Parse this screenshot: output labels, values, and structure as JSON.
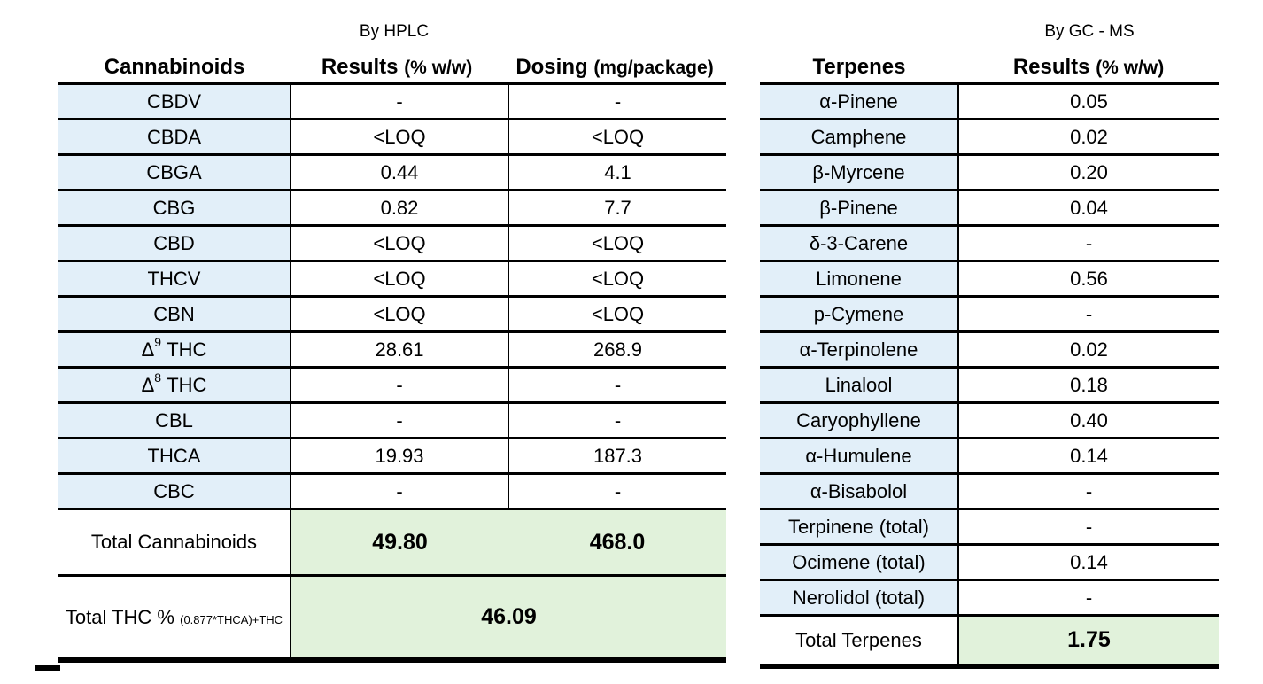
{
  "left": {
    "caption": "By HPLC",
    "col_headers": {
      "name": "Cannabinoids",
      "results": "Results",
      "results_unit": "(% w/w)",
      "dosing": "Dosing",
      "dosing_unit": "(mg/package)"
    },
    "rows": [
      {
        "name": "CBDV",
        "sup": "",
        "result": "-",
        "dose": "-"
      },
      {
        "name": "CBDA",
        "sup": "",
        "result": "<LOQ",
        "dose": "<LOQ"
      },
      {
        "name": "CBGA",
        "sup": "",
        "result": "0.44",
        "dose": "4.1"
      },
      {
        "name": "CBG",
        "sup": "",
        "result": "0.82",
        "dose": "7.7"
      },
      {
        "name": "CBD",
        "sup": "",
        "result": "<LOQ",
        "dose": "<LOQ"
      },
      {
        "name": "THCV",
        "sup": "",
        "result": "<LOQ",
        "dose": "<LOQ"
      },
      {
        "name": "CBN",
        "sup": "",
        "result": "<LOQ",
        "dose": "<LOQ"
      },
      {
        "name": "Δ",
        "sup": "9",
        "suffix": " THC",
        "result": "28.61",
        "dose": "268.9"
      },
      {
        "name": "Δ",
        "sup": "8",
        "suffix": " THC",
        "result": "-",
        "dose": "-"
      },
      {
        "name": "CBL",
        "sup": "",
        "result": "-",
        "dose": "-"
      },
      {
        "name": "THCA",
        "sup": "",
        "result": "19.93",
        "dose": "187.3"
      },
      {
        "name": "CBC",
        "sup": "",
        "result": "-",
        "dose": "-"
      }
    ],
    "total_cannabinoids": {
      "label": "Total Cannabinoids",
      "result": "49.80",
      "dose": "468.0"
    },
    "total_thc": {
      "label": "Total THC %",
      "formula": "(0.877*THCA)+THC",
      "value": "46.09"
    }
  },
  "right": {
    "caption": "By GC - MS",
    "col_headers": {
      "name": "Terpenes",
      "results": "Results",
      "results_unit": "(% w/w)"
    },
    "rows": [
      {
        "name": "α-Pinene",
        "result": "0.05"
      },
      {
        "name": "Camphene",
        "result": "0.02"
      },
      {
        "name": "β-Myrcene",
        "result": "0.20"
      },
      {
        "name": "β-Pinene",
        "result": "0.04"
      },
      {
        "name": "δ-3-Carene",
        "result": "-"
      },
      {
        "name": "Limonene",
        "result": "0.56"
      },
      {
        "name": "p-Cymene",
        "result": "-"
      },
      {
        "name": "α-Terpinolene",
        "result": "0.02"
      },
      {
        "name": "Linalool",
        "result": "0.18"
      },
      {
        "name": "Caryophyllene",
        "result": "0.40"
      },
      {
        "name": "α-Humulene",
        "result": "0.14"
      },
      {
        "name": "α-Bisabolol",
        "result": "-"
      },
      {
        "name": "Terpinene (total)",
        "result": "-"
      },
      {
        "name": "Ocimene (total)",
        "result": "0.14"
      },
      {
        "name": "Nerolidol (total)",
        "result": "-"
      }
    ],
    "total_terpenes": {
      "label": "Total Terpenes",
      "value": "1.75"
    }
  },
  "colors": {
    "name_cell_bg": "#e2eff9",
    "total_cell_bg": "#e1f2db"
  }
}
